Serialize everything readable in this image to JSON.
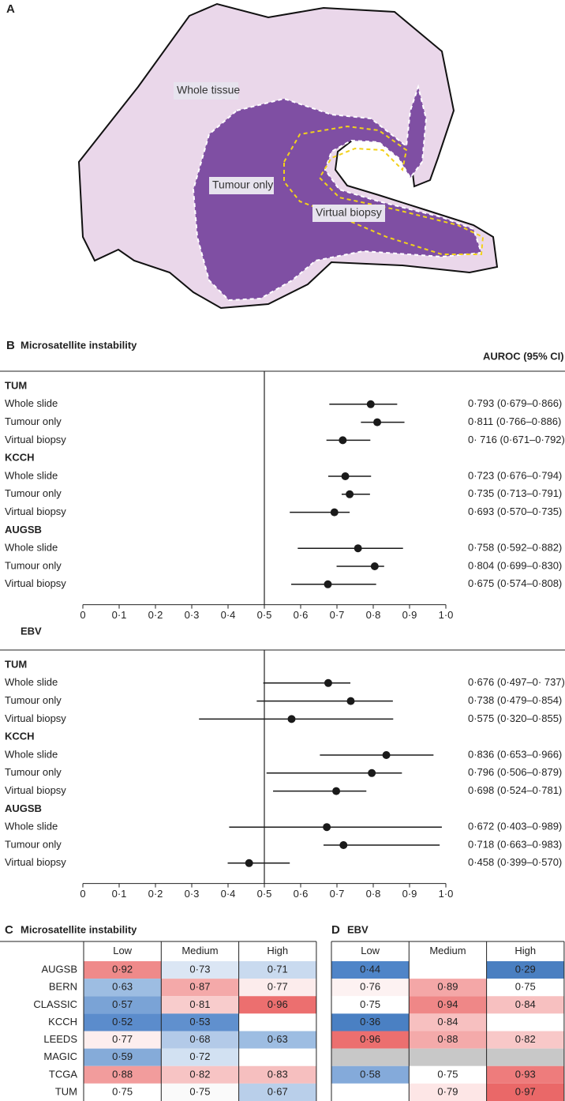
{
  "image": {
    "label": "A",
    "regions": [
      "Whole tissue",
      "Tumour only",
      "Virtual biopsy"
    ]
  },
  "chart_data": [
    {
      "type": "forest",
      "label": "B",
      "title": "Microsatellite instability",
      "value_label_header": "AUROC (95% CI)",
      "color": "#1a1a1a",
      "reference_line": 0.5,
      "xlim": [
        0,
        1
      ],
      "xticks": [
        0,
        {
          "value": 0.1,
          "label": "0·1"
        },
        {
          "value": 0.2,
          "label": "0·2"
        },
        {
          "value": 0.3,
          "label": "0·3"
        },
        {
          "value": 0.4,
          "label": "0·4"
        },
        {
          "value": 0.5,
          "label": "0·5"
        },
        {
          "value": 0.6,
          "label": "0·6"
        },
        {
          "value": 0.7,
          "label": "0·7"
        },
        {
          "value": 0.8,
          "label": "0·8"
        },
        {
          "value": 0.9,
          "label": "0·9"
        },
        {
          "value": 1,
          "label": "1·0"
        }
      ],
      "groups": [
        {
          "name": "TUM",
          "categories": [
            "Whole slide",
            "Tumour only",
            "Virtual biopsy"
          ],
          "values": [
            0.793,
            0.811,
            0.716
          ],
          "ci_low": [
            0.679,
            0.766,
            0.671
          ],
          "ci_high": [
            0.866,
            0.886,
            0.792
          ],
          "value_labels": [
            "0·793 (0·679–0·866)",
            "0·811 (0·766–0·886)",
            "0· 716 (0·671–0·792)"
          ]
        },
        {
          "name": "KCCH",
          "categories": [
            "Whole slide",
            "Tumour only",
            "Virtual biopsy"
          ],
          "values": [
            0.723,
            0.735,
            0.693
          ],
          "ci_low": [
            0.676,
            0.713,
            0.57
          ],
          "ci_high": [
            0.794,
            0.791,
            0.735
          ],
          "value_labels": [
            "0·723 (0·676–0·794)",
            "0·735 (0·713–0·791)",
            "0·693 (0·570–0·735)"
          ]
        },
        {
          "name": "AUGSB",
          "categories": [
            "Whole slide",
            "Tumour only",
            "Virtual biopsy"
          ],
          "values": [
            0.758,
            0.804,
            0.675
          ],
          "ci_low": [
            0.592,
            0.699,
            0.574
          ],
          "ci_high": [
            0.882,
            0.83,
            0.808
          ],
          "value_labels": [
            "0·758 (0·592–0·882)",
            "0·804 (0·699–0·830)",
            "0·675 (0·574–0·808)"
          ]
        }
      ]
    },
    {
      "type": "forest",
      "title": "EBV",
      "color": "#1a1a1a",
      "reference_line": 0.5,
      "xlim": [
        0,
        1
      ],
      "xticks": [
        0,
        {
          "value": 0.1,
          "label": "0·1"
        },
        {
          "value": 0.2,
          "label": "0·2"
        },
        {
          "value": 0.3,
          "label": "0·3"
        },
        {
          "value": 0.4,
          "label": "0·4"
        },
        {
          "value": 0.5,
          "label": "0·5"
        },
        {
          "value": 0.6,
          "label": "0·6"
        },
        {
          "value": 0.7,
          "label": "0·7"
        },
        {
          "value": 0.8,
          "label": "0·8"
        },
        {
          "value": 0.9,
          "label": "0·9"
        },
        {
          "value": 1,
          "label": "1·0"
        }
      ],
      "groups": [
        {
          "name": "TUM",
          "categories": [
            "Whole slide",
            "Tumour only",
            "Virtual biopsy"
          ],
          "values": [
            0.676,
            0.738,
            0.575
          ],
          "ci_low": [
            0.497,
            0.479,
            0.32
          ],
          "ci_high": [
            0.737,
            0.854,
            0.855
          ],
          "value_labels": [
            "0·676 (0·497–0· 737)",
            "0·738 (0·479–0·854)",
            "0·575 (0·320–0·855)"
          ]
        },
        {
          "name": "KCCH",
          "categories": [
            "Whole slide",
            "Tumour only",
            "Virtual biopsy"
          ],
          "values": [
            0.836,
            0.796,
            0.698
          ],
          "ci_low": [
            0.653,
            0.506,
            0.524
          ],
          "ci_high": [
            0.966,
            0.879,
            0.781
          ],
          "value_labels": [
            "0·836 (0·653–0·966)",
            "0·796 (0·506–0·879)",
            "0·698 (0·524–0·781)"
          ]
        },
        {
          "name": "AUGSB",
          "categories": [
            "Whole slide",
            "Tumour only",
            "Virtual biopsy"
          ],
          "values": [
            0.672,
            0.718,
            0.458
          ],
          "ci_low": [
            0.403,
            0.663,
            0.399
          ],
          "ci_high": [
            0.989,
            0.983,
            0.57
          ],
          "value_labels": [
            "0·672 (0·403–0·989)",
            "0·718 (0·663–0·983)",
            "0·458 (0·399–0·570)"
          ]
        }
      ]
    },
    {
      "type": "heatmap",
      "label": "C",
      "title": "Microsatellite instability",
      "columns": [
        "Low",
        "Medium",
        "High"
      ],
      "rows": [
        "AUGSB",
        "BERN",
        "CLASSIC",
        "KCCH",
        "LEEDS",
        "MAGIC",
        "TCGA",
        "TUM"
      ],
      "values": [
        [
          0.92,
          0.73,
          0.71
        ],
        [
          0.63,
          0.87,
          0.77
        ],
        [
          0.57,
          0.81,
          0.96
        ],
        [
          0.52,
          0.53,
          null
        ],
        [
          0.77,
          0.68,
          0.63
        ],
        [
          0.59,
          0.72,
          null
        ],
        [
          0.88,
          0.82,
          0.83
        ],
        [
          0.75,
          0.75,
          0.67
        ]
      ],
      "value_labels": [
        [
          "0·92",
          "0·73",
          "0·71"
        ],
        [
          "0·63",
          "0·87",
          "0·77"
        ],
        [
          "0·57",
          "0·81",
          "0·96"
        ],
        [
          "0·52",
          "0·53",
          null
        ],
        [
          "0·77",
          "0·68",
          "0·63"
        ],
        [
          "0·59",
          "0·72",
          null
        ],
        [
          "0·88",
          "0·82",
          "0·83"
        ],
        [
          "0·75",
          "0·75",
          "0·67"
        ]
      ],
      "colors": [
        [
          "#ef8a8a",
          "#dbe6f4",
          "#c9daef"
        ],
        [
          "#9dbde2",
          "#f4a9a9",
          "#fcecec"
        ],
        [
          "#7aa3d6",
          "#f8cccc",
          "#ec6f6f"
        ],
        [
          "#5b8ccc",
          "#6090ce",
          "#ffffff"
        ],
        [
          "#fdeeee",
          "#b3cae8",
          "#9dbde2"
        ],
        [
          "#85abd9",
          "#d2e1f2",
          "#ffffff"
        ],
        [
          "#f29c9c",
          "#f7c4c4",
          "#f6bfbf"
        ],
        [
          "#ffffff",
          "#fafafa",
          "#b9cfea"
        ]
      ]
    },
    {
      "type": "heatmap",
      "label": "D",
      "title": "EBV",
      "columns": [
        "Low",
        "Medium",
        "High"
      ],
      "values": [
        [
          0.44,
          null,
          0.29
        ],
        [
          0.76,
          0.89,
          0.75
        ],
        [
          0.75,
          0.94,
          0.84
        ],
        [
          0.36,
          0.84,
          null
        ],
        [
          0.96,
          0.88,
          0.82
        ],
        [
          null,
          null,
          null
        ],
        [
          0.58,
          0.75,
          0.93
        ],
        [
          null,
          0.79,
          0.97
        ]
      ],
      "value_labels": [
        [
          "0·44",
          null,
          "0·29"
        ],
        [
          "0·76",
          "0·89",
          "0·75"
        ],
        [
          "0·75",
          "0·94",
          "0·84"
        ],
        [
          "0·36",
          "0·84",
          null
        ],
        [
          "0·96",
          "0·88",
          "0·82"
        ],
        [
          null,
          null,
          null
        ],
        [
          "0·58",
          "0·75",
          "0·93"
        ],
        [
          null,
          "0·79",
          "0·97"
        ]
      ],
      "colors": [
        [
          "#4f85c8",
          "#ffffff",
          "#4a7fc1"
        ],
        [
          "#fdf2f2",
          "#f4a7a7",
          "#ffffff"
        ],
        [
          "#ffffff",
          "#ef8787",
          "#f7c0c0"
        ],
        [
          "#4a80c3",
          "#f7c0c0",
          "#ffffff"
        ],
        [
          "#ec6f6f",
          "#f4aaaa",
          "#f8c8c8"
        ],
        [
          "#c8c8c8",
          "#c8c8c8",
          "#c8c8c8"
        ],
        [
          "#84aada",
          "#ffffff",
          "#ee7c7c"
        ],
        [
          "#ffffff",
          "#fde6e6",
          "#ea6868"
        ]
      ]
    }
  ]
}
